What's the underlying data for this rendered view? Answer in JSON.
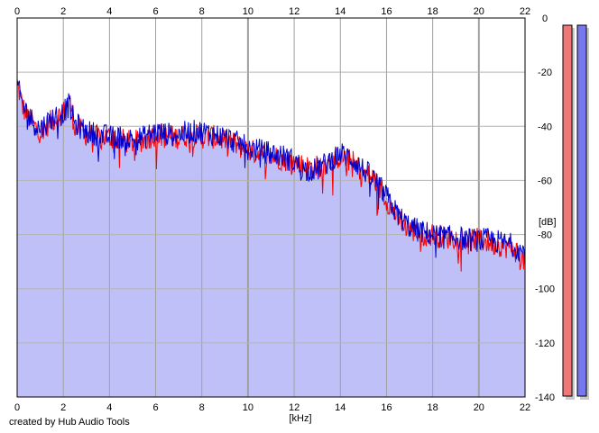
{
  "chart_data": {
    "type": "area",
    "title": "",
    "xlabel": "[kHz]",
    "ylabel": "[dB]",
    "xlim": [
      0,
      22
    ],
    "ylim": [
      -140,
      0
    ],
    "x_ticks": [
      0,
      2,
      4,
      6,
      8,
      10,
      12,
      14,
      16,
      18,
      20,
      22
    ],
    "y_ticks": [
      0,
      -20,
      -40,
      -60,
      -80,
      -100,
      -120,
      -140
    ],
    "x_tick_labels": [
      "0",
      "2",
      "4",
      "6",
      "8",
      "10",
      "12",
      "14",
      "16",
      "18",
      "20",
      "22"
    ],
    "y_tick_labels": [
      "0",
      "-20",
      "-40",
      "-60",
      "-80",
      "-100",
      "-120",
      "-140"
    ],
    "grid": true,
    "legend": "none",
    "series": [
      {
        "color": "#ff0000",
        "x": [
          0,
          0.25,
          0.5,
          0.75,
          1,
          1.5,
          2,
          2.25,
          2.5,
          3,
          3.5,
          4,
          4.5,
          5,
          5.5,
          6,
          6.5,
          7,
          7.5,
          8,
          8.5,
          9,
          9.5,
          10,
          10.5,
          11,
          11.5,
          12,
          12.5,
          13,
          13.5,
          14,
          14.5,
          15,
          15.5,
          16,
          16.5,
          17,
          17.5,
          18,
          18.5,
          19,
          19.5,
          20,
          20.5,
          21,
          21.5,
          22
        ],
        "y": [
          -24,
          -33,
          -37,
          -40,
          -42,
          -38,
          -35,
          -30,
          -40,
          -43,
          -44,
          -44,
          -45,
          -46,
          -45,
          -43,
          -44,
          -44,
          -43,
          -44,
          -44,
          -45,
          -47,
          -49,
          -50,
          -51,
          -52,
          -53,
          -55,
          -55,
          -53,
          -51,
          -53,
          -57,
          -60,
          -67,
          -74,
          -78,
          -80,
          -80,
          -81,
          -81,
          -82,
          -82,
          -83,
          -84,
          -85,
          -90
        ]
      },
      {
        "color": "#0000cc",
        "x": [
          0,
          0.25,
          0.5,
          0.75,
          1,
          1.5,
          2,
          2.25,
          2.5,
          3,
          3.5,
          4,
          4.5,
          5,
          5.5,
          6,
          6.5,
          7,
          7.5,
          8,
          8.5,
          9,
          9.5,
          10,
          10.5,
          11,
          11.5,
          12,
          12.5,
          13,
          13.5,
          14,
          14.5,
          15,
          15.5,
          16,
          16.5,
          17,
          17.5,
          18,
          18.5,
          19,
          19.5,
          20,
          20.5,
          21,
          21.5,
          22
        ],
        "y": [
          -25,
          -32,
          -36,
          -39,
          -41,
          -37,
          -35,
          -32,
          -39,
          -42,
          -43,
          -44,
          -44,
          -45,
          -44,
          -42,
          -43,
          -43,
          -42,
          -42,
          -43,
          -44,
          -46,
          -48,
          -49,
          -50,
          -51,
          -53,
          -56,
          -56,
          -53,
          -50,
          -52,
          -56,
          -60,
          -66,
          -73,
          -77,
          -79,
          -80,
          -81,
          -81,
          -82,
          -82,
          -82,
          -83,
          -84,
          -87
        ]
      }
    ],
    "fill_color": "#c0c0f8",
    "level_meters": [
      {
        "color": "#ee7777",
        "level_db": 0
      },
      {
        "color": "#7777ee",
        "level_db": 0
      }
    ]
  },
  "credit": "created by Hub Audio Tools"
}
